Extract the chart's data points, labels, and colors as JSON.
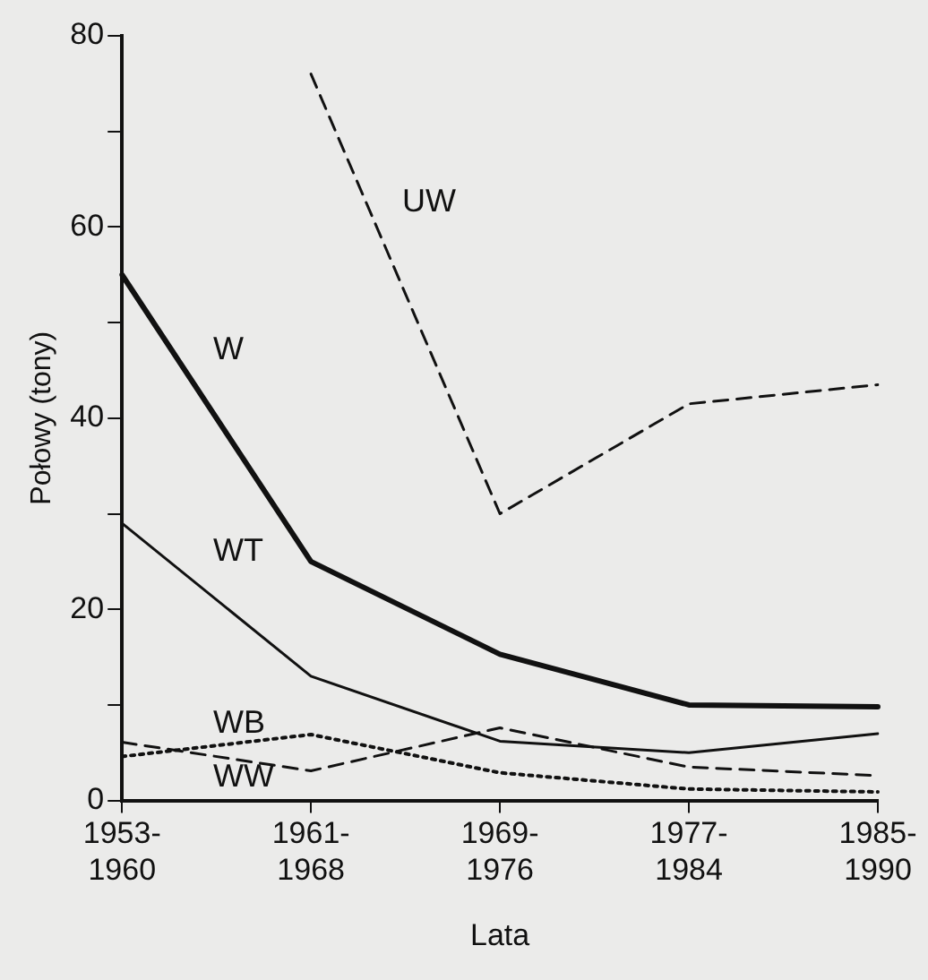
{
  "chart_data": {
    "type": "line",
    "xlabel": "Lata",
    "ylabel": "Połowy (tony)",
    "categories": [
      "1953-1960",
      "1961-1968",
      "1969-1976",
      "1977-1984",
      "1985-1990"
    ],
    "series": [
      {
        "name": "UW",
        "color": "#111111",
        "line_style": "dashed",
        "values": [
          null,
          76,
          30,
          41.5,
          43.5
        ]
      },
      {
        "name": "W",
        "color": "#111111",
        "line_style": "solid",
        "values": [
          55,
          25,
          15.3,
          10,
          9.8
        ]
      },
      {
        "name": "WT",
        "color": "#111111",
        "line_style": "solid",
        "values": [
          29,
          13,
          6.2,
          5,
          7
        ]
      },
      {
        "name": "WB",
        "color": "#111111",
        "line_style": "dotted",
        "values": [
          4.6,
          6.9,
          2.9,
          1.2,
          0.9
        ]
      },
      {
        "name": "WW",
        "color": "#111111",
        "line_style": "dashed",
        "values": [
          6.1,
          3.1,
          7.6,
          3.5,
          2.6
        ]
      }
    ],
    "ylim": [
      0,
      80
    ],
    "yticks": [
      0,
      {
        "value": 10,
        "label": null
      },
      20,
      {
        "value": 30,
        "label": null
      },
      40,
      {
        "value": 50,
        "label": null
      },
      60,
      {
        "value": 70,
        "label": null
      },
      80
    ],
    "grid": false,
    "legend": false,
    "marker": "none"
  }
}
